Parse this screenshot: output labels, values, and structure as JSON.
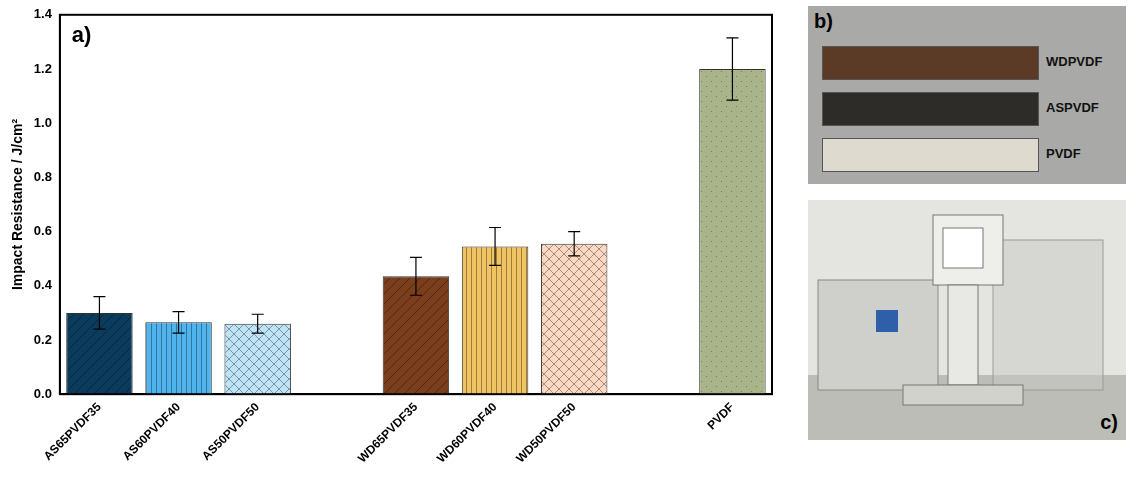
{
  "chart_data": {
    "type": "bar",
    "panel_label": "a)",
    "ylabel": "Impact Resistance / J/cm²",
    "categories": [
      "AS65PVDF35",
      "AS60PVDF40",
      "AS50PVDF50",
      null,
      "WD65PVDF35",
      "WD60PVDF40",
      "WD50PVDF50",
      null,
      "PVDF"
    ],
    "values": [
      0.3,
      0.265,
      0.26,
      null,
      0.435,
      0.545,
      0.555,
      null,
      1.2
    ],
    "errors": [
      0.06,
      0.04,
      0.035,
      null,
      0.07,
      0.07,
      0.045,
      null,
      0.115
    ],
    "colors": [
      "#0b3c5d",
      "#4fb4ee",
      "#bfe3f7",
      null,
      "#7a3e1c",
      "#f0c462",
      "#fbd8c2",
      null,
      "#a9b48a"
    ],
    "ylim": [
      0,
      1.4
    ],
    "yticks": [
      {
        "value": 0,
        "label": "0.0"
      },
      {
        "value": 0.2,
        "label": "0.2"
      },
      {
        "value": 0.4,
        "label": "0.4"
      },
      {
        "value": 0.6,
        "label": "0.6"
      },
      {
        "value": 0.8,
        "label": "0.8"
      },
      {
        "value": 1.0,
        "label": "1.0"
      },
      {
        "value": 1.2,
        "label": "1.2"
      },
      {
        "value": 1.4,
        "label": "1.4"
      }
    ],
    "grid": false
  },
  "photos": [
    {
      "panel_label": "b)",
      "labels": [
        "WDPVDF",
        "ASPVDF",
        "PVDF"
      ]
    },
    {
      "panel_label": "c)"
    }
  ]
}
